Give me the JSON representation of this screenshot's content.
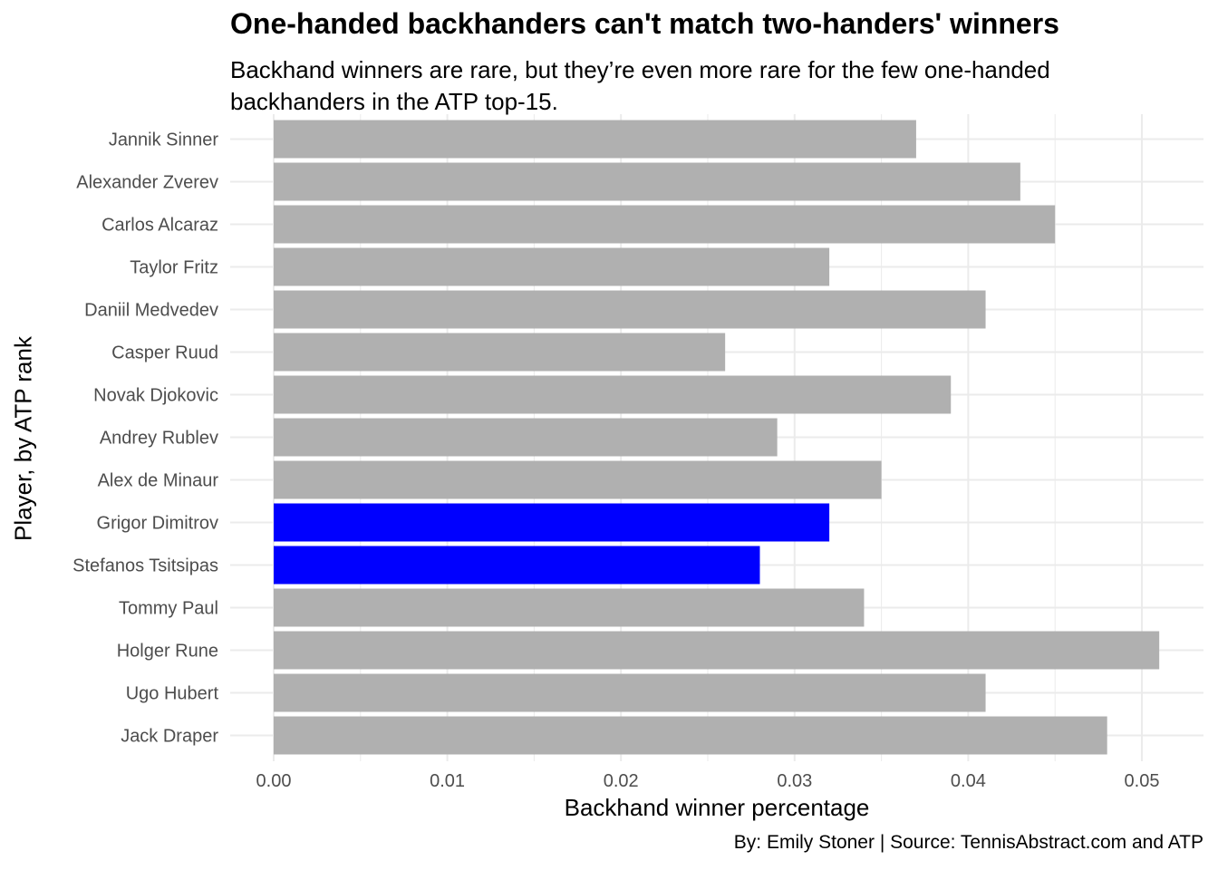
{
  "title": "One-handed backhanders can't match two-handers' winners",
  "subtitle": "Backhand winners are rare, but they’re even more rare for the few one-handed backhanders in the ATP top-15.",
  "caption": "By: Emily Stoner | Source: TennisAbstract.com and ATP",
  "chart_data": {
    "type": "bar",
    "orientation": "horizontal",
    "title": "One-handed backhanders can't match two-handers' winners",
    "subtitle": "Backhand winners are rare, but they’re even more rare for the few one-handed backhanders in the ATP top-15.",
    "xlabel": "Backhand winner percentage",
    "ylabel": "Player, by ATP rank",
    "xlim": [
      0,
      0.053
    ],
    "x_ticks": [
      "0.00",
      "0.01",
      "0.02",
      "0.03",
      "0.04",
      "0.05"
    ],
    "x_tick_values": [
      0,
      0.01,
      0.02,
      0.03,
      0.04,
      0.05
    ],
    "grid": true,
    "legend": "none",
    "categories": [
      "Jannik Sinner",
      "Alexander Zverev",
      "Carlos Alcaraz",
      "Taylor Fritz",
      "Daniil Medvedev",
      "Casper Ruud",
      "Novak Djokovic",
      "Andrey Rublev",
      "Alex de Minaur",
      "Grigor Dimitrov",
      "Stefanos Tsitsipas",
      "Tommy Paul",
      "Holger Rune",
      "Ugo Hubert",
      "Jack Draper"
    ],
    "values": [
      0.037,
      0.043,
      0.045,
      0.032,
      0.041,
      0.026,
      0.039,
      0.029,
      0.035,
      0.032,
      0.028,
      0.034,
      0.051,
      0.041,
      0.048
    ],
    "one_handed": [
      false,
      false,
      false,
      false,
      false,
      false,
      false,
      false,
      false,
      true,
      true,
      false,
      false,
      false,
      false
    ],
    "colors": {
      "default": "#b0b0b0",
      "highlight": "#0000ff",
      "grid": "#ebebeb"
    }
  }
}
